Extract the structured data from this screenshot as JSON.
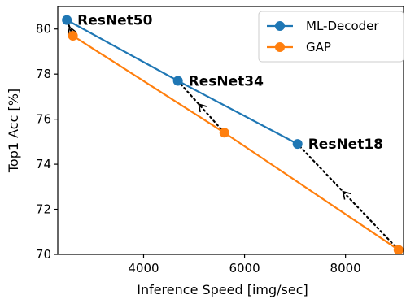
{
  "chart_data": {
    "type": "line",
    "xlabel": "Inference Speed [img/sec]",
    "ylabel": "Top1 Acc [%]",
    "xlim": [
      2300,
      9150
    ],
    "ylim": [
      70,
      81
    ],
    "xticks": [
      4000,
      6000,
      8000
    ],
    "yticks": [
      70,
      72,
      74,
      76,
      78,
      80
    ],
    "grid": false,
    "legend_position": "top-right",
    "series": [
      {
        "name": "ML-Decoder",
        "color": "#1f77b4",
        "points": [
          {
            "x": 2480,
            "y": 80.4
          },
          {
            "x": 4680,
            "y": 77.7
          },
          {
            "x": 7050,
            "y": 74.9
          }
        ]
      },
      {
        "name": "GAP",
        "color": "#ff7f0e",
        "points": [
          {
            "x": 2600,
            "y": 79.7
          },
          {
            "x": 5600,
            "y": 75.4
          },
          {
            "x": 9050,
            "y": 70.2
          }
        ]
      }
    ],
    "point_labels": [
      {
        "text": "ResNet50",
        "x": 2480,
        "y": 80.4
      },
      {
        "text": "ResNet34",
        "x": 4680,
        "y": 77.7
      },
      {
        "text": "ResNet18",
        "x": 7050,
        "y": 74.9
      }
    ],
    "arrows": [
      {
        "from": {
          "x": 2600,
          "y": 79.7
        },
        "to": {
          "x": 2480,
          "y": 80.4
        }
      },
      {
        "from": {
          "x": 5600,
          "y": 75.4
        },
        "to": {
          "x": 4680,
          "y": 77.7
        }
      },
      {
        "from": {
          "x": 9050,
          "y": 70.2
        },
        "to": {
          "x": 7050,
          "y": 74.9
        }
      }
    ]
  }
}
